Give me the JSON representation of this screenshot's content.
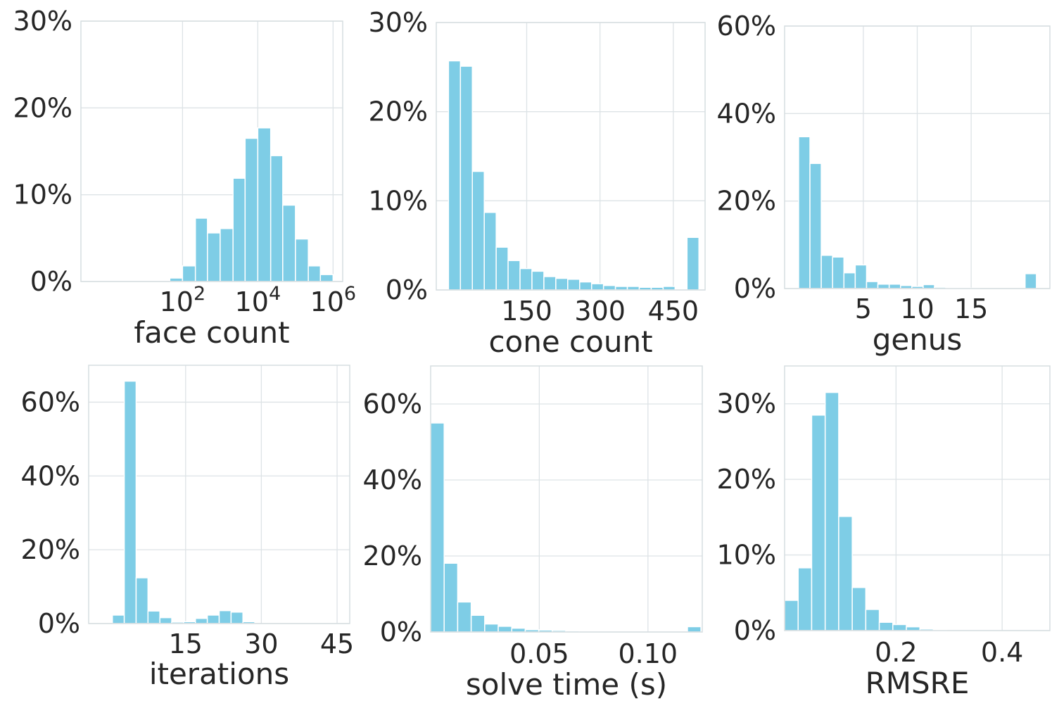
{
  "bar_color": "#7ecde6",
  "chart_data": [
    {
      "type": "bar",
      "title": "",
      "xlabel": "face count",
      "ylabel": "",
      "xscale": "log",
      "xlim": [
        0.2,
        1800000
      ],
      "ylim": [
        0,
        30
      ],
      "yticks": [
        0,
        10,
        20,
        30
      ],
      "ytick_labels": [
        "0%",
        "10%",
        "20%",
        "30%"
      ],
      "xticks": [
        {
          "v": 100,
          "base": "10",
          "exp": "2"
        },
        {
          "v": 10000,
          "base": "10",
          "exp": "4"
        },
        {
          "v": 1000000,
          "base": "10",
          "exp": "6"
        }
      ],
      "bin_edges": [
        1,
        2.2,
        4.6,
        10,
        22,
        46,
        100,
        220,
        460,
        1000,
        2200,
        4600,
        10000,
        22000,
        46000,
        100000,
        220000,
        460000,
        1000000
      ],
      "values": [
        0,
        0,
        0,
        0,
        0,
        0.4,
        1.8,
        7.3,
        5.6,
        6.1,
        11.9,
        16.5,
        17.7,
        14.5,
        8.8,
        4.9,
        1.8,
        0.8
      ]
    },
    {
      "type": "bar",
      "title": "",
      "xlabel": "cone count",
      "ylabel": "",
      "xlim": [
        -35,
        515
      ],
      "ylim": [
        0,
        30
      ],
      "yticks": [
        0,
        10,
        20,
        30
      ],
      "ytick_labels": [
        "0%",
        "10%",
        "20%",
        "30%"
      ],
      "xticks": [
        {
          "v": 150,
          "label": "150"
        },
        {
          "v": 300,
          "label": "300"
        },
        {
          "v": 450,
          "label": "450"
        }
      ],
      "bin_edges": [
        -10,
        14.4,
        38.8,
        63.2,
        87.6,
        112,
        136.4,
        160.8,
        185.2,
        209.6,
        234,
        258.4,
        282.8,
        307.2,
        331.6,
        356,
        380.4,
        404.8,
        429.2,
        453.6,
        478,
        502.4
      ],
      "values": [
        25.7,
        25.1,
        13.3,
        8.7,
        4.8,
        3.3,
        2.4,
        2.1,
        1.5,
        1.3,
        1.2,
        0.9,
        0.7,
        0.5,
        0.4,
        0.4,
        0.3,
        0.3,
        0.4,
        0,
        5.9
      ]
    },
    {
      "type": "bar",
      "title": "",
      "xlabel": "genus",
      "ylabel": "",
      "xlim": [
        -2.3,
        22.3
      ],
      "ylim": [
        0,
        60
      ],
      "yticks": [
        0,
        20,
        40,
        60
      ],
      "ytick_labels": [
        "0%",
        "20%",
        "40%",
        "60%"
      ],
      "xticks": [
        {
          "v": 5,
          "label": "5"
        },
        {
          "v": 10,
          "label": "10"
        },
        {
          "v": 15,
          "label": "15"
        }
      ],
      "bin_edges": [
        -1,
        0.05,
        1.1,
        2.15,
        3.2,
        4.25,
        5.3,
        6.35,
        7.4,
        8.45,
        9.5,
        10.55,
        11.6,
        12.65,
        13.7,
        14.75,
        15.8,
        16.85,
        17.9,
        18.95,
        20,
        21.05
      ],
      "values": [
        34.7,
        28.6,
        7.6,
        7.2,
        3.6,
        5.4,
        1.6,
        1.0,
        1.0,
        0.7,
        0.5,
        0.9,
        0.3,
        0.2,
        0.1,
        0.1,
        0,
        0,
        0,
        0,
        3.4
      ]
    },
    {
      "type": "bar",
      "title": "",
      "xlabel": "iterations",
      "ylabel": "",
      "xlim": [
        -4.2,
        47.5
      ],
      "ylim": [
        0,
        70
      ],
      "yticks": [
        0,
        20,
        40,
        60
      ],
      "ytick_labels": [
        "0%",
        "20%",
        "40%",
        "60%"
      ],
      "xticks": [
        {
          "v": 15,
          "label": "15"
        },
        {
          "v": 30,
          "label": "30"
        },
        {
          "v": 45,
          "label": "45"
        }
      ],
      "bin_edges": [
        0.5,
        2.85,
        5.2,
        7.55,
        9.9,
        12.25,
        14.6,
        16.95,
        19.3,
        21.65,
        24,
        26.35,
        28.7,
        31.05,
        33.4,
        35.75,
        38.1,
        40.45,
        42.8,
        45.15
      ],
      "values": [
        2.3,
        65.7,
        12.4,
        3.4,
        1.6,
        0.4,
        0.5,
        1.4,
        2.3,
        3.5,
        3.1,
        0.5,
        0,
        0,
        0,
        0,
        0,
        0,
        0
      ]
    },
    {
      "type": "bar",
      "title": "",
      "xlabel": "solve time (s)",
      "ylabel": "",
      "xlim": [
        0.0,
        0.125
      ],
      "ylim": [
        0,
        70
      ],
      "yticks": [
        0,
        20,
        40,
        60
      ],
      "ytick_labels": [
        "0%",
        "20%",
        "40%",
        "60%"
      ],
      "xticks": [
        {
          "v": 0.05,
          "label": "0.05"
        },
        {
          "v": 0.1,
          "label": "0.10"
        }
      ],
      "bin_edges": [
        0.0,
        0.00622,
        0.01244,
        0.01866,
        0.02488,
        0.0311,
        0.03732,
        0.04354,
        0.04976,
        0.05598,
        0.0622,
        0.06842,
        0.07464,
        0.08086,
        0.08708,
        0.0933,
        0.09952,
        0.10574,
        0.11196,
        0.11818,
        0.1244
      ],
      "values": [
        55.0,
        18.1,
        7.9,
        4.4,
        2.1,
        1.5,
        1.0,
        0.6,
        0.5,
        0.4,
        0.3,
        0,
        0,
        0,
        0,
        0,
        0,
        0,
        0,
        1.4
      ]
    },
    {
      "type": "bar",
      "title": "",
      "xlabel": "RMSRE",
      "ylabel": "",
      "xlim": [
        -0.01,
        0.49
      ],
      "ylim": [
        0,
        35
      ],
      "yticks": [
        0,
        10,
        20,
        30
      ],
      "ytick_labels": [
        "0%",
        "10%",
        "20%",
        "30%"
      ],
      "xticks": [
        {
          "v": 0.2,
          "label": "0.2"
        },
        {
          "v": 0.4,
          "label": "0.4"
        }
      ],
      "bin_edges": [
        -0.01,
        0.0155,
        0.041,
        0.0665,
        0.092,
        0.1175,
        0.143,
        0.1685,
        0.194,
        0.2195,
        0.245,
        0.2705,
        0.296,
        0.3215,
        0.347,
        0.3725,
        0.398,
        0.4235,
        0.449,
        0.4745
      ],
      "values": [
        4.0,
        8.3,
        28.5,
        31.5,
        15.1,
        5.7,
        2.8,
        1.1,
        0.8,
        0.5,
        0.2,
        0.1,
        0,
        0,
        0,
        0,
        0,
        0,
        0
      ]
    }
  ]
}
